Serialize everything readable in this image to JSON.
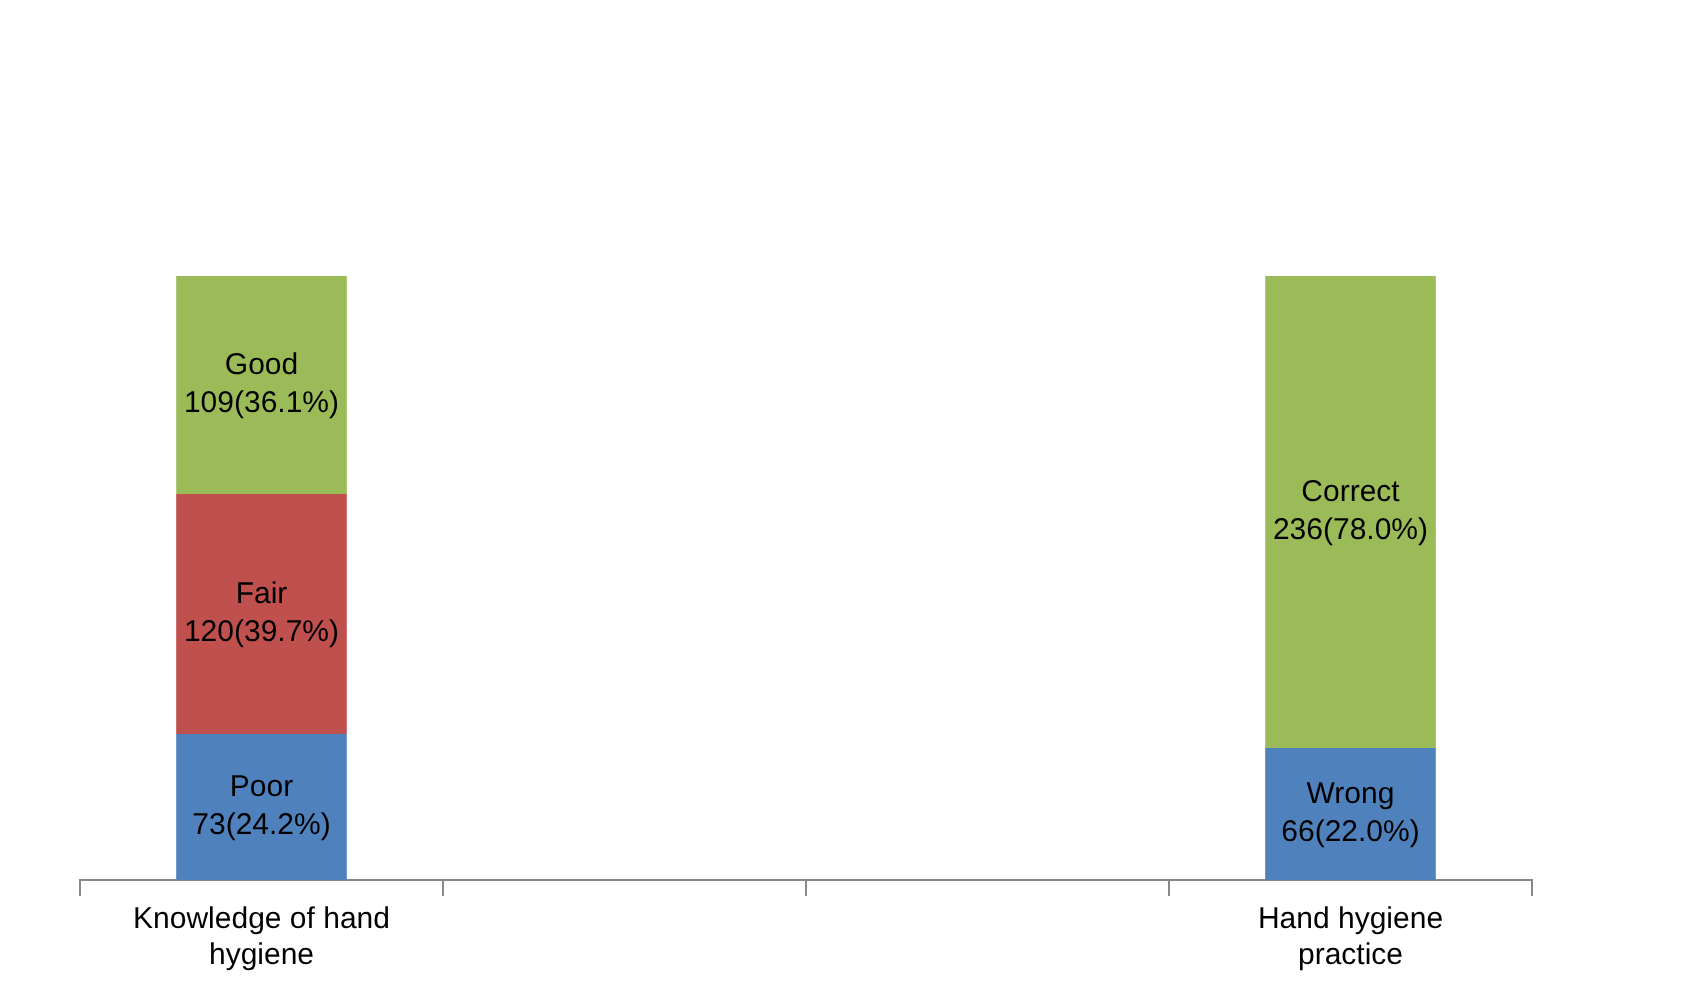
{
  "chart_data": {
    "type": "bar",
    "stacked": true,
    "categories": [
      "Knowledge of hand hygiene",
      null,
      null,
      "Hand hygiene practice"
    ],
    "series": [
      {
        "color": "#4f81bd",
        "values": [
          73,
          null,
          null,
          66
        ],
        "value_labels": [
          "Poor\n73(24.2%)",
          null,
          null,
          "Wrong\n66(22.0%)"
        ]
      },
      {
        "color": "#c0504d",
        "values": [
          120,
          null,
          null,
          null
        ],
        "value_labels": [
          "Fair\n120(39.7%)",
          null,
          null,
          null
        ]
      },
      {
        "color": "#9bbb59",
        "values": [
          109,
          null,
          null,
          236
        ],
        "value_labels": [
          "Good\n109(36.1%)",
          null,
          null,
          "Correct\n236(78.0%)"
        ]
      }
    ],
    "grid": false,
    "legend": false,
    "tick_labels": "x"
  }
}
